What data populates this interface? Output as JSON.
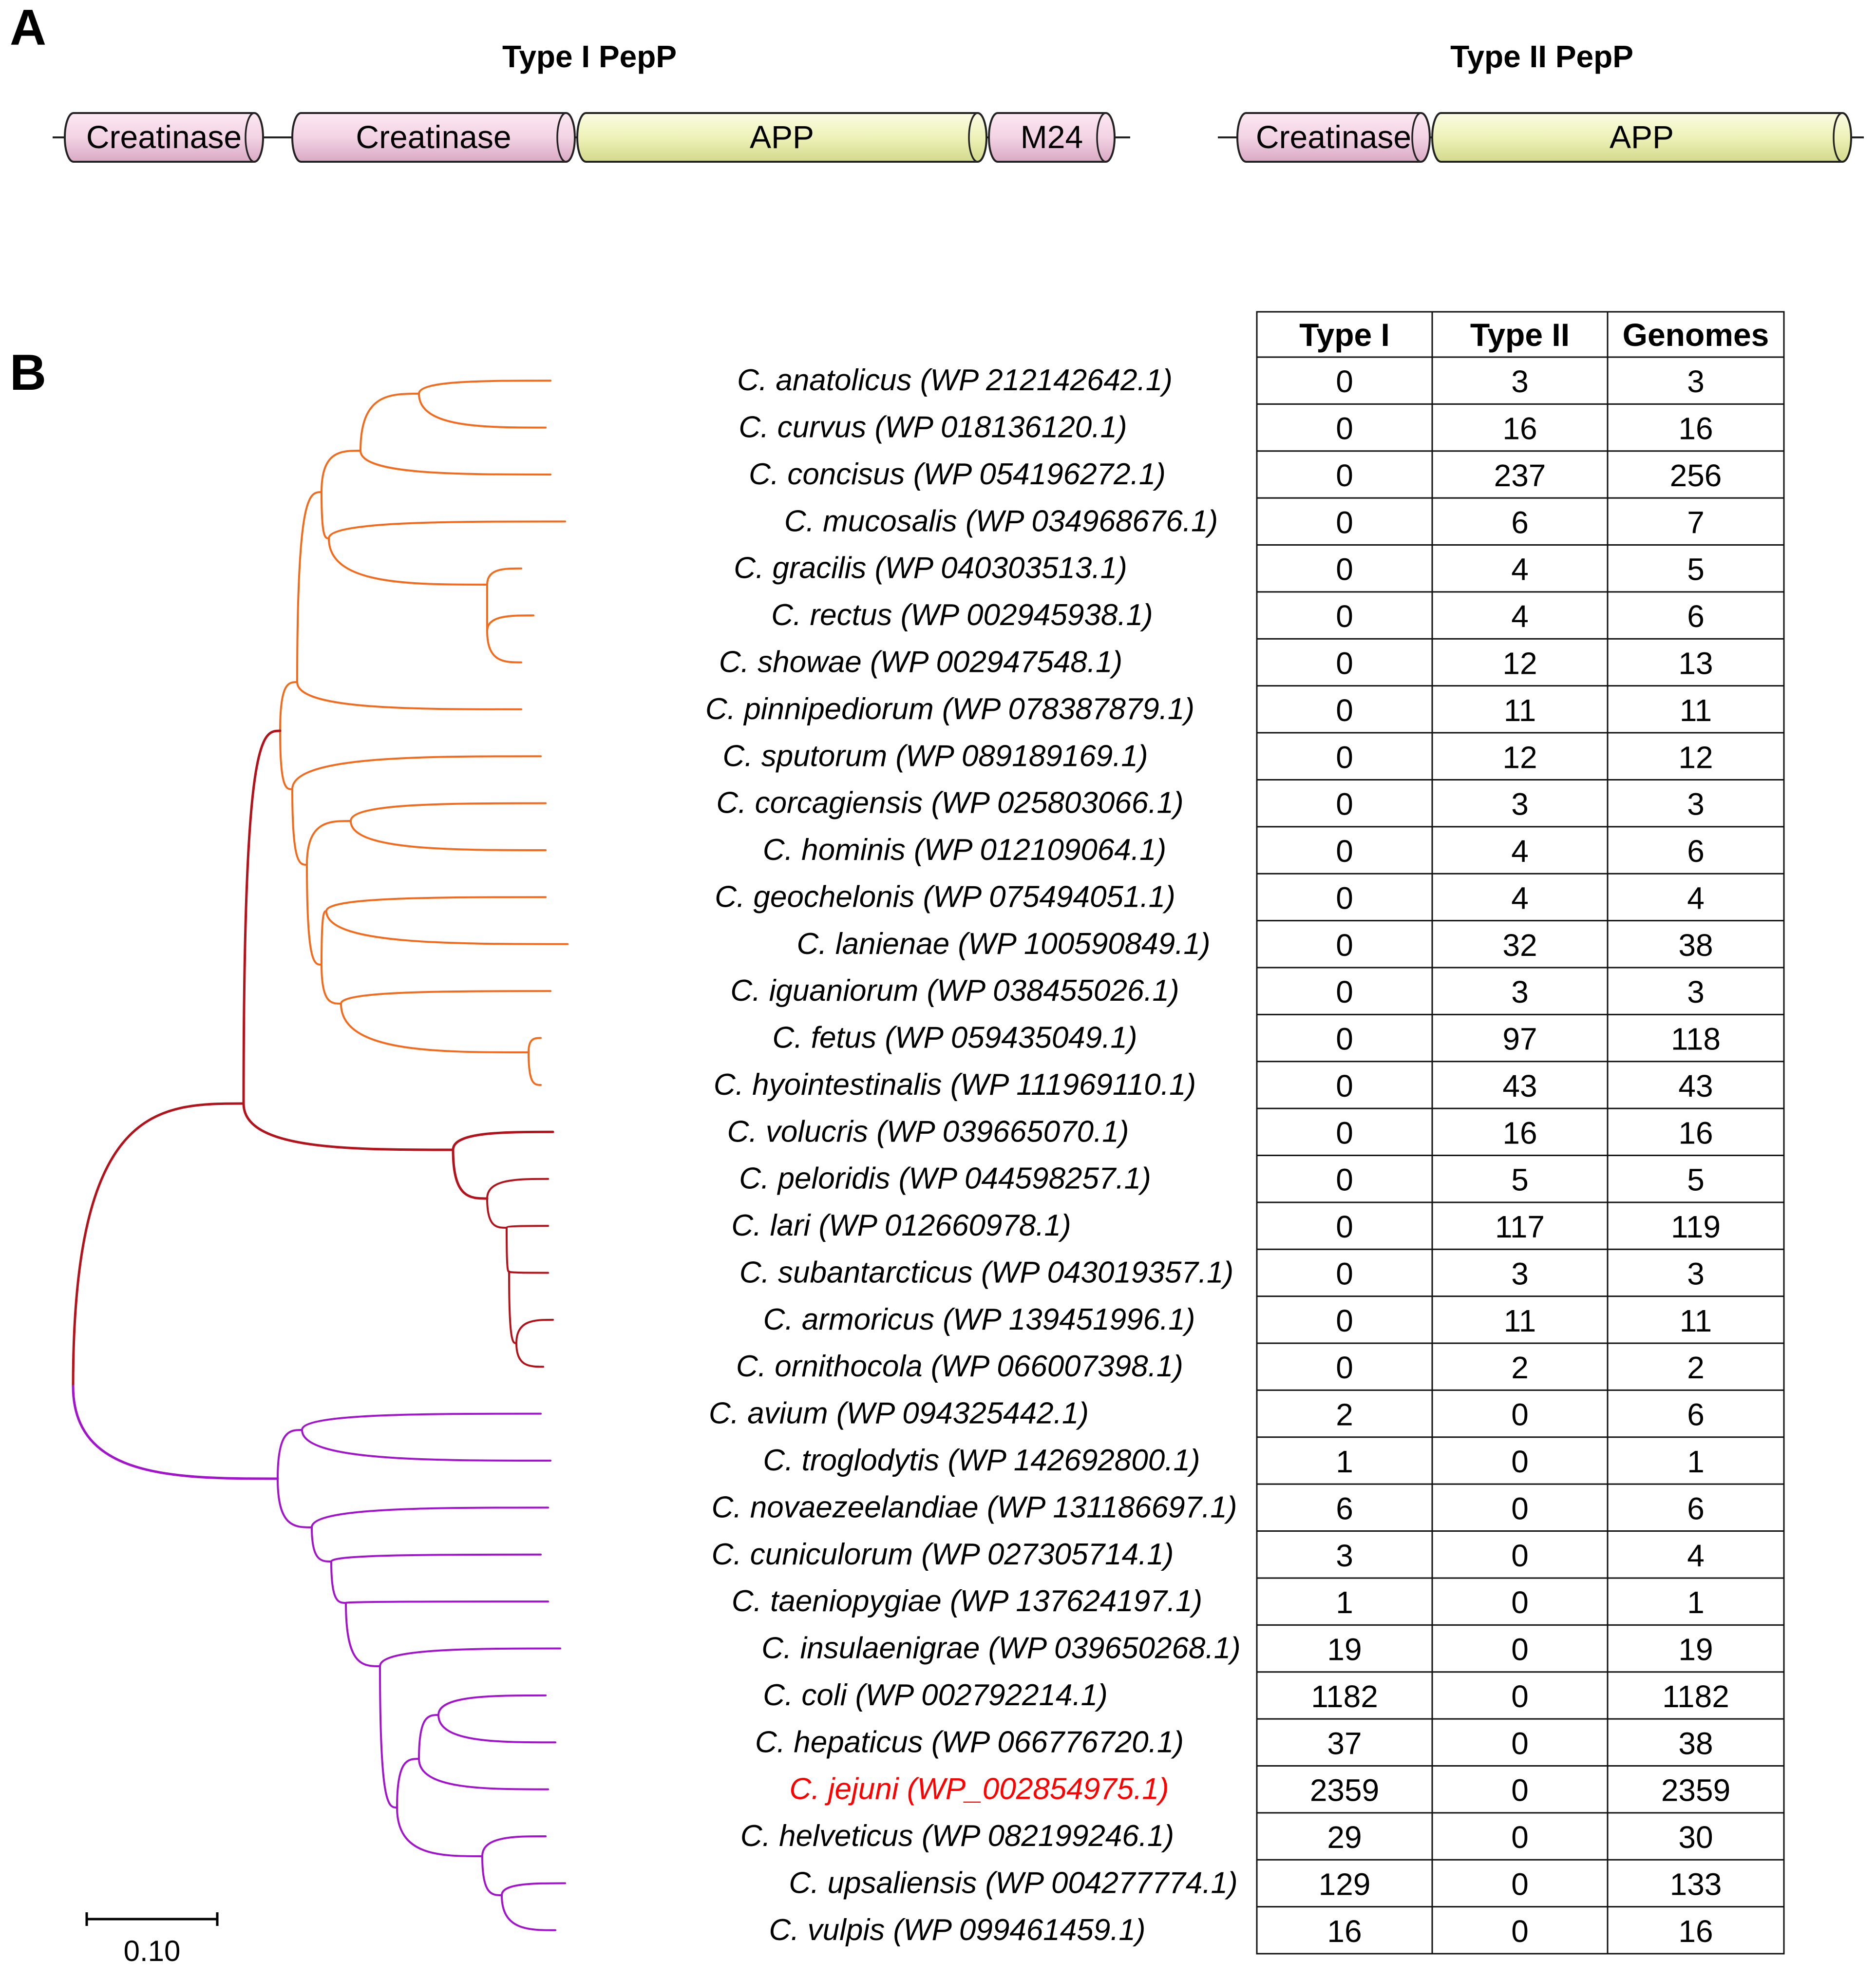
{
  "panel_a": {
    "label": "A",
    "type1": {
      "title": "Type I PepP",
      "domains": [
        {
          "name": "Creatinase",
          "kind": "creatinase"
        },
        {
          "name": "Creatinase",
          "kind": "creatinase"
        },
        {
          "name": "APP",
          "kind": "app"
        },
        {
          "name": "M24",
          "kind": "creatinase"
        }
      ]
    },
    "type2": {
      "title": "Type II PepP",
      "domains": [
        {
          "name": "Creatinase",
          "kind": "creatinase"
        },
        {
          "name": "APP",
          "kind": "app"
        }
      ]
    }
  },
  "panel_b": {
    "label": "B",
    "scale_bar_label": "0.10",
    "table_headers": [
      "Type I",
      "Type II",
      "Genomes"
    ],
    "clade_colors": {
      "orange": "#F26B1D",
      "red": "#B3121A",
      "purple": "#A213CC"
    },
    "highlight_color": "#FF0000",
    "rows": [
      {
        "species": "C. anatolicus (WP 212142642.1)",
        "type1": "0",
        "type2": "3",
        "genomes": "3",
        "clade": "orange"
      },
      {
        "species": "C. curvus (WP 018136120.1)",
        "type1": "0",
        "type2": "16",
        "genomes": "16",
        "clade": "orange"
      },
      {
        "species": "C. concisus (WP 054196272.1)",
        "type1": "0",
        "type2": "237",
        "genomes": "256",
        "clade": "orange"
      },
      {
        "species": "C. mucosalis (WP 034968676.1)",
        "type1": "0",
        "type2": "6",
        "genomes": "7",
        "clade": "orange"
      },
      {
        "species": "C. gracilis (WP 040303513.1)",
        "type1": "0",
        "type2": "4",
        "genomes": "5",
        "clade": "orange"
      },
      {
        "species": "C. rectus (WP 002945938.1)",
        "type1": "0",
        "type2": "4",
        "genomes": "6",
        "clade": "orange"
      },
      {
        "species": "C. showae (WP 002947548.1)",
        "type1": "0",
        "type2": "12",
        "genomes": "13",
        "clade": "orange"
      },
      {
        "species": "C. pinnipediorum (WP 078387879.1)",
        "type1": "0",
        "type2": "11",
        "genomes": "11",
        "clade": "orange"
      },
      {
        "species": "C. sputorum (WP 089189169.1)",
        "type1": "0",
        "type2": "12",
        "genomes": "12",
        "clade": "orange"
      },
      {
        "species": "C. corcagiensis (WP 025803066.1)",
        "type1": "0",
        "type2": "3",
        "genomes": "3",
        "clade": "orange"
      },
      {
        "species": "C. hominis (WP 012109064.1)",
        "type1": "0",
        "type2": "4",
        "genomes": "6",
        "clade": "orange"
      },
      {
        "species": "C. geochelonis (WP 075494051.1)",
        "type1": "0",
        "type2": "4",
        "genomes": "4",
        "clade": "orange"
      },
      {
        "species": "C. lanienae (WP 100590849.1)",
        "type1": "0",
        "type2": "32",
        "genomes": "38",
        "clade": "orange"
      },
      {
        "species": "C. iguaniorum (WP 038455026.1)",
        "type1": "0",
        "type2": "3",
        "genomes": "3",
        "clade": "orange"
      },
      {
        "species": "C. fetus (WP 059435049.1)",
        "type1": "0",
        "type2": "97",
        "genomes": "118",
        "clade": "orange"
      },
      {
        "species": "C. hyointestinalis (WP 111969110.1)",
        "type1": "0",
        "type2": "43",
        "genomes": "43",
        "clade": "orange"
      },
      {
        "species": "C. volucris (WP 039665070.1)",
        "type1": "0",
        "type2": "16",
        "genomes": "16",
        "clade": "red"
      },
      {
        "species": "C. peloridis (WP 044598257.1)",
        "type1": "0",
        "type2": "5",
        "genomes": "5",
        "clade": "red"
      },
      {
        "species": "C. lari (WP 012660978.1)",
        "type1": "0",
        "type2": "117",
        "genomes": "119",
        "clade": "red"
      },
      {
        "species": "C. subantarcticus (WP 043019357.1)",
        "type1": "0",
        "type2": "3",
        "genomes": "3",
        "clade": "red"
      },
      {
        "species": "C. armoricus (WP 139451996.1)",
        "type1": "0",
        "type2": "11",
        "genomes": "11",
        "clade": "red"
      },
      {
        "species": "C. ornithocola (WP 066007398.1)",
        "type1": "0",
        "type2": "2",
        "genomes": "2",
        "clade": "red"
      },
      {
        "species": "C. avium (WP 094325442.1)",
        "type1": "2",
        "type2": "0",
        "genomes": "6",
        "clade": "purple"
      },
      {
        "species": "C. troglodytis (WP 142692800.1)",
        "type1": "1",
        "type2": "0",
        "genomes": "1",
        "clade": "purple"
      },
      {
        "species": "C. novaezeelandiae (WP 131186697.1)",
        "type1": "6",
        "type2": "0",
        "genomes": "6",
        "clade": "purple"
      },
      {
        "species": "C. cuniculorum (WP 027305714.1)",
        "type1": "3",
        "type2": "0",
        "genomes": "4",
        "clade": "purple"
      },
      {
        "species": "C. taeniopygiae (WP 137624197.1)",
        "type1": "1",
        "type2": "0",
        "genomes": "1",
        "clade": "purple"
      },
      {
        "species": "C. insulaenigrae (WP 039650268.1)",
        "type1": "19",
        "type2": "0",
        "genomes": "19",
        "clade": "purple"
      },
      {
        "species": "C. coli (WP 002792214.1)",
        "type1": "1182",
        "type2": "0",
        "genomes": "1182",
        "clade": "purple"
      },
      {
        "species": "C. hepaticus (WP 066776720.1)",
        "type1": "37",
        "type2": "0",
        "genomes": "38",
        "clade": "purple"
      },
      {
        "species": "C. jejuni (WP_002854975.1)",
        "type1": "2359",
        "type2": "0",
        "genomes": "2359",
        "clade": "purple",
        "highlight": true
      },
      {
        "species": "C. helveticus (WP 082199246.1)",
        "type1": "29",
        "type2": "0",
        "genomes": "30",
        "clade": "purple"
      },
      {
        "species": "C. upsaliensis (WP 004277774.1)",
        "type1": "129",
        "type2": "0",
        "genomes": "133",
        "clade": "purple"
      },
      {
        "species": "C. vulpis (WP 099461459.1)",
        "type1": "16",
        "type2": "0",
        "genomes": "16",
        "clade": "purple"
      }
    ]
  }
}
